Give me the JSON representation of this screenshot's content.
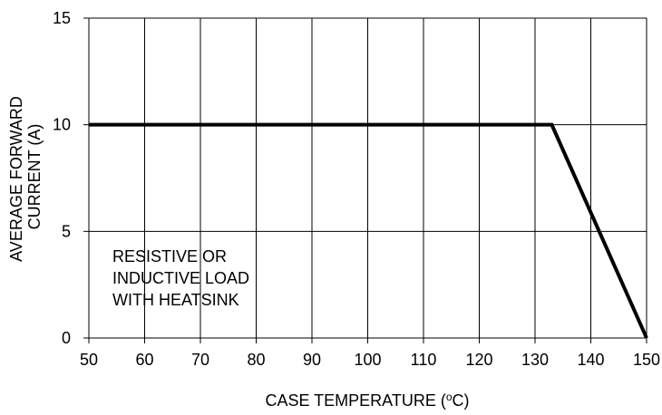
{
  "chart_data": {
    "type": "line",
    "title": "",
    "xlabel": "CASE TEMPERATURE (°C)",
    "xlabel_parts": {
      "before": "CASE TEMPERATURE (",
      "superscript": "o",
      "after": "C)"
    },
    "ylabel_lines": [
      "AVERAGE FORWARD",
      "CURRENT (A)"
    ],
    "xlim": [
      50,
      150
    ],
    "ylim": [
      0,
      15
    ],
    "x_ticks": [
      50,
      60,
      70,
      80,
      90,
      100,
      110,
      120,
      130,
      140,
      150
    ],
    "y_ticks": [
      0,
      5,
      10,
      15
    ],
    "grid": true,
    "line_color": "#000000",
    "series": [
      {
        "x": [
          50,
          133,
          150
        ],
        "y": [
          10,
          10,
          0
        ]
      }
    ],
    "annotation_lines": [
      "RESISTIVE OR",
      "INDUCTIVE LOAD",
      "WITH HEATSINK"
    ]
  }
}
